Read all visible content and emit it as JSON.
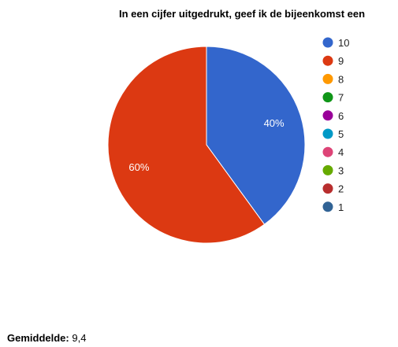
{
  "chart_data": {
    "type": "pie",
    "title": "In een cijfer uitgedrukt, geef ik de bijeenkomst een",
    "categories": [
      "10",
      "9",
      "8",
      "7",
      "6",
      "5",
      "4",
      "3",
      "2",
      "1"
    ],
    "values": [
      40,
      60,
      0,
      0,
      0,
      0,
      0,
      0,
      0,
      0
    ],
    "slice_labels": [
      "40%",
      "60%",
      "",
      "",
      "",
      "",
      "",
      "",
      "",
      ""
    ],
    "colors": [
      "#3366cc",
      "#dc3912",
      "#ff9900",
      "#109618",
      "#990099",
      "#0099c6",
      "#dd4477",
      "#66aa00",
      "#b82e2e",
      "#316395"
    ],
    "legend_position": "right"
  },
  "summary": {
    "label": "Gemiddelde:",
    "value": "9,4"
  }
}
